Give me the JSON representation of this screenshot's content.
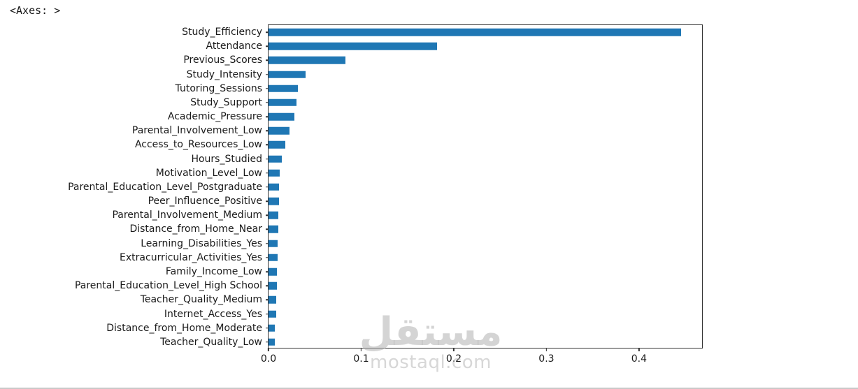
{
  "page": {
    "repr_text": "<Axes: >"
  },
  "watermark": {
    "logo_text": "مستقل",
    "site_text": "mostaql.com"
  },
  "chart_data": {
    "type": "bar",
    "orientation": "horizontal",
    "title": "",
    "xlabel": "",
    "ylabel": "",
    "grid": false,
    "legend_visible": false,
    "bar_color": "#1f77b4",
    "xlim": [
      0,
      0.468
    ],
    "x_ticks": [
      {
        "value": 0.0,
        "label": "0.0"
      },
      {
        "value": 0.1,
        "label": "0.1"
      },
      {
        "value": 0.2,
        "label": "0.2"
      },
      {
        "value": 0.3,
        "label": "0.3"
      },
      {
        "value": 0.4,
        "label": "0.4"
      }
    ],
    "categories": [
      "Study_Efficiency",
      "Attendance",
      "Previous_Scores",
      "Study_Intensity",
      "Tutoring_Sessions",
      "Study_Support",
      "Academic_Pressure",
      "Parental_Involvement_Low",
      "Access_to_Resources_Low",
      "Hours_Studied",
      "Motivation_Level_Low",
      "Parental_Education_Level_Postgraduate",
      "Peer_Influence_Positive",
      "Parental_Involvement_Medium",
      "Distance_from_Home_Near",
      "Learning_Disabilities_Yes",
      "Extracurricular_Activities_Yes",
      "Family_Income_Low",
      "Parental_Education_Level_High School",
      "Teacher_Quality_Medium",
      "Internet_Access_Yes",
      "Distance_from_Home_Moderate",
      "Teacher_Quality_Low"
    ],
    "values": [
      0.445,
      0.182,
      0.083,
      0.04,
      0.032,
      0.03,
      0.028,
      0.023,
      0.018,
      0.014,
      0.012,
      0.0115,
      0.011,
      0.0105,
      0.0105,
      0.01,
      0.0095,
      0.009,
      0.009,
      0.0085,
      0.008,
      0.007,
      0.007
    ]
  }
}
